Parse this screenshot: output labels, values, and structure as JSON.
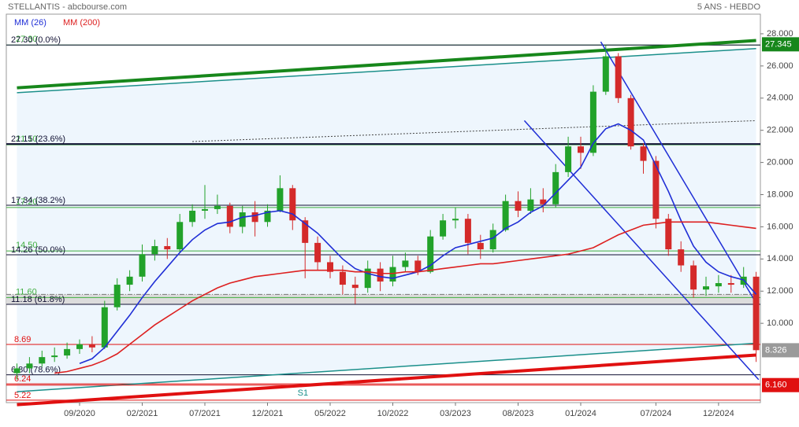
{
  "chart_data": {
    "type": "candlestick",
    "title": "STELLANTIS - abcbourse.com",
    "subtitle": "5 ANS - HEBDO",
    "categories": [
      null,
      null,
      null,
      null,
      null,
      "09/2020",
      null,
      null,
      null,
      null,
      "02/2021",
      null,
      null,
      null,
      null,
      "07/2021",
      null,
      null,
      null,
      null,
      "12/2021",
      null,
      null,
      null,
      null,
      "05/2022",
      null,
      null,
      null,
      null,
      "10/2022",
      null,
      null,
      null,
      null,
      "03/2023",
      null,
      null,
      null,
      null,
      "08/2023",
      null,
      null,
      null,
      null,
      "01/2024",
      null,
      null,
      null,
      null,
      null,
      "07/2024",
      null,
      null,
      null,
      null,
      "12/2024",
      null,
      null,
      null
    ],
    "open": [
      6.9,
      7.2,
      7.5,
      7.9,
      8.0,
      8.4,
      8.7,
      8.5,
      11.0,
      12.4,
      12.9,
      14.3,
      14.8,
      14.6,
      16.3,
      17.0,
      17.1,
      17.3,
      16.0,
      16.9,
      16.3,
      17.0,
      18.4,
      16.4,
      15.0,
      13.8,
      13.2,
      12.4,
      12.2,
      13.4,
      12.6,
      13.5,
      13.9,
      13.2,
      15.4,
      16.4,
      16.5,
      15.0,
      14.6,
      15.8,
      17.6,
      17.0,
      17.7,
      17.4,
      19.4,
      21.0,
      20.6,
      24.4,
      26.6,
      24.0,
      21.0,
      20.1,
      16.5,
      14.6,
      13.6,
      12.1,
      12.3,
      12.5,
      12.4,
      12.9
    ],
    "high": [
      7.5,
      7.9,
      8.3,
      8.5,
      8.8,
      9.0,
      9.2,
      11.4,
      12.8,
      13.3,
      14.9,
      15.2,
      15.3,
      16.8,
      17.4,
      18.6,
      18.0,
      17.5,
      17.3,
      17.6,
      17.4,
      19.2,
      18.6,
      16.6,
      15.4,
      14.2,
      13.6,
      12.9,
      13.9,
      13.8,
      14.2,
      14.4,
      14.2,
      15.8,
      16.8,
      17.2,
      16.8,
      15.5,
      16.2,
      18.0,
      18.2,
      18.4,
      18.4,
      19.9,
      21.6,
      21.6,
      24.8,
      27.3,
      26.8,
      24.2,
      21.2,
      20.4,
      16.8,
      15.1,
      13.9,
      12.9,
      13.0,
      13.0,
      13.5,
      13.2
    ],
    "low": [
      6.5,
      6.9,
      7.3,
      7.6,
      7.8,
      8.1,
      8.2,
      8.4,
      10.8,
      12.0,
      12.6,
      13.9,
      14.0,
      14.4,
      16.0,
      16.5,
      16.8,
      15.6,
      15.6,
      15.4,
      16.0,
      16.9,
      15.8,
      12.8,
      13.3,
      12.8,
      11.8,
      11.2,
      11.9,
      12.0,
      12.3,
      13.2,
      13.0,
      13.1,
      15.2,
      15.9,
      14.3,
      14.0,
      14.4,
      15.7,
      16.6,
      16.8,
      16.9,
      17.2,
      19.1,
      19.6,
      20.4,
      24.2,
      23.7,
      20.8,
      19.3,
      15.9,
      14.2,
      13.2,
      11.6,
      11.7,
      11.9,
      11.9,
      12.2,
      7.6
    ],
    "close": [
      7.2,
      7.5,
      7.9,
      8.0,
      8.4,
      8.7,
      8.5,
      11.0,
      12.4,
      12.9,
      14.3,
      14.8,
      14.6,
      16.3,
      17.0,
      17.1,
      17.3,
      16.0,
      16.9,
      16.3,
      17.0,
      18.4,
      16.4,
      15.0,
      13.8,
      13.2,
      12.4,
      12.2,
      13.4,
      12.6,
      13.5,
      13.9,
      13.2,
      15.4,
      16.4,
      16.5,
      15.0,
      14.6,
      15.8,
      17.6,
      17.0,
      17.7,
      17.4,
      19.4,
      21.0,
      20.6,
      24.4,
      26.6,
      24.0,
      21.0,
      20.1,
      16.5,
      14.6,
      13.6,
      12.1,
      12.3,
      12.5,
      12.4,
      12.9,
      8.33
    ],
    "up_color": "#22a22a",
    "down_color": "#d42a2a",
    "series": [
      {
        "name": "MM (26)",
        "color": "#1f2ed6",
        "values": [
          null,
          null,
          null,
          null,
          null,
          7.5,
          7.8,
          8.5,
          9.5,
          10.5,
          11.6,
          12.6,
          13.5,
          14.4,
          15.2,
          15.8,
          16.2,
          16.3,
          16.6,
          16.7,
          16.9,
          17.0,
          16.8,
          16.2,
          15.6,
          14.8,
          14.0,
          13.4,
          13.1,
          12.9,
          12.8,
          13.0,
          13.2,
          13.6,
          14.2,
          14.7,
          14.9,
          15.1,
          15.3,
          15.9,
          16.3,
          16.9,
          17.3,
          18.1,
          18.9,
          19.7,
          21.2,
          22.1,
          22.4,
          22.0,
          21.4,
          19.8,
          18.2,
          16.4,
          14.8,
          13.8,
          13.2,
          12.9,
          12.7,
          11.8
        ]
      },
      {
        "name": "MM (200)",
        "color": "#dd2020",
        "values": [
          null,
          null,
          null,
          6.9,
          7.0,
          7.2,
          7.4,
          7.7,
          8.1,
          8.7,
          9.3,
          9.9,
          10.4,
          10.9,
          11.4,
          11.8,
          12.2,
          12.5,
          12.7,
          12.9,
          13.0,
          13.1,
          13.2,
          13.3,
          13.3,
          13.3,
          13.3,
          13.2,
          13.2,
          13.1,
          13.1,
          13.2,
          13.2,
          13.3,
          13.4,
          13.5,
          13.6,
          13.7,
          13.7,
          13.8,
          13.9,
          14.0,
          14.1,
          14.2,
          14.3,
          14.5,
          14.7,
          15.1,
          15.5,
          15.8,
          16.1,
          16.2,
          16.3,
          16.3,
          16.3,
          16.3,
          16.2,
          16.1,
          16.0,
          15.9
        ]
      }
    ],
    "ylim": [
      5.07,
      29.22
    ],
    "yticks": [
      {
        "value": 10,
        "label": "10.000"
      },
      {
        "value": 12,
        "label": "12.000"
      },
      {
        "value": 14,
        "label": "14.000"
      },
      {
        "value": 16,
        "label": "16.000"
      },
      {
        "value": 18,
        "label": "18.000"
      },
      {
        "value": 20,
        "label": "20.000"
      },
      {
        "value": 22,
        "label": "22.000"
      },
      {
        "value": 24,
        "label": "24.000"
      },
      {
        "value": 26,
        "label": "26.000"
      },
      {
        "value": 28,
        "label": "28.000"
      }
    ],
    "band": [
      11.18,
      11.8
    ],
    "fib_levels": [
      {
        "value": 27.3,
        "label": "27.30 (0.0%)"
      },
      {
        "value": 21.15,
        "label": "21.15 (23.6%)"
      },
      {
        "value": 17.34,
        "label": "17.34 (38.2%)"
      },
      {
        "value": 14.26,
        "label": "14.26 (50.0%)"
      },
      {
        "value": 11.18,
        "label": "11.18 (61.8%)"
      },
      {
        "value": 6.8,
        "label": "6.80 (78.6%)"
      }
    ],
    "support_levels": [
      {
        "value": 27.3,
        "label": "27.30"
      },
      {
        "value": 21.1,
        "label": "21.10"
      },
      {
        "value": 17.2,
        "label": "17.20"
      },
      {
        "value": 14.5,
        "label": "14.50"
      },
      {
        "value": 11.6,
        "label": "11.60"
      }
    ],
    "red_levels": [
      {
        "value": 8.69,
        "label": "8.69"
      },
      {
        "value": 6.24,
        "label": "6.24"
      },
      {
        "value": 5.22,
        "label": "5.22"
      }
    ],
    "price_tags": [
      {
        "value": 27.345,
        "label": "27.345",
        "color": "#17871b"
      },
      {
        "value": 8.326,
        "label": "8.326",
        "color": "#9a9a9a"
      },
      {
        "value": 6.16,
        "label": "6.160",
        "color": "#e01010"
      }
    ],
    "trend_lines": [
      {
        "from": [
          0,
          24.64
        ],
        "to": [
          59,
          27.58
        ],
        "color": "#17871b",
        "width": 4
      },
      {
        "from": [
          0,
          24.34
        ],
        "to": [
          59,
          27.08
        ],
        "color": "#1a8f8a",
        "width": 1.5
      },
      {
        "from": [
          0,
          5.75
        ],
        "to": [
          59,
          8.76
        ],
        "color": "#1a8f8a",
        "width": 1.5
      },
      {
        "from": [
          0,
          4.94
        ],
        "to": [
          59,
          8.03
        ],
        "color": "#e01010",
        "width": 4
      },
      {
        "from": [
          14,
          21.3
        ],
        "to": [
          59,
          22.6
        ],
        "color": "#444444",
        "width": 1,
        "dash": true
      },
      {
        "from": [
          46.6,
          27.5
        ],
        "to": [
          59.2,
          11.0
        ],
        "color": "#1f2ed6",
        "width": 1.5
      },
      {
        "from": [
          40.5,
          22.6
        ],
        "to": [
          59.2,
          6.5
        ],
        "color": "#1f2ed6",
        "width": 1.5
      }
    ],
    "annotations": [
      {
        "text": "S1",
        "x": 22.4,
        "value": 5.66
      }
    ]
  }
}
